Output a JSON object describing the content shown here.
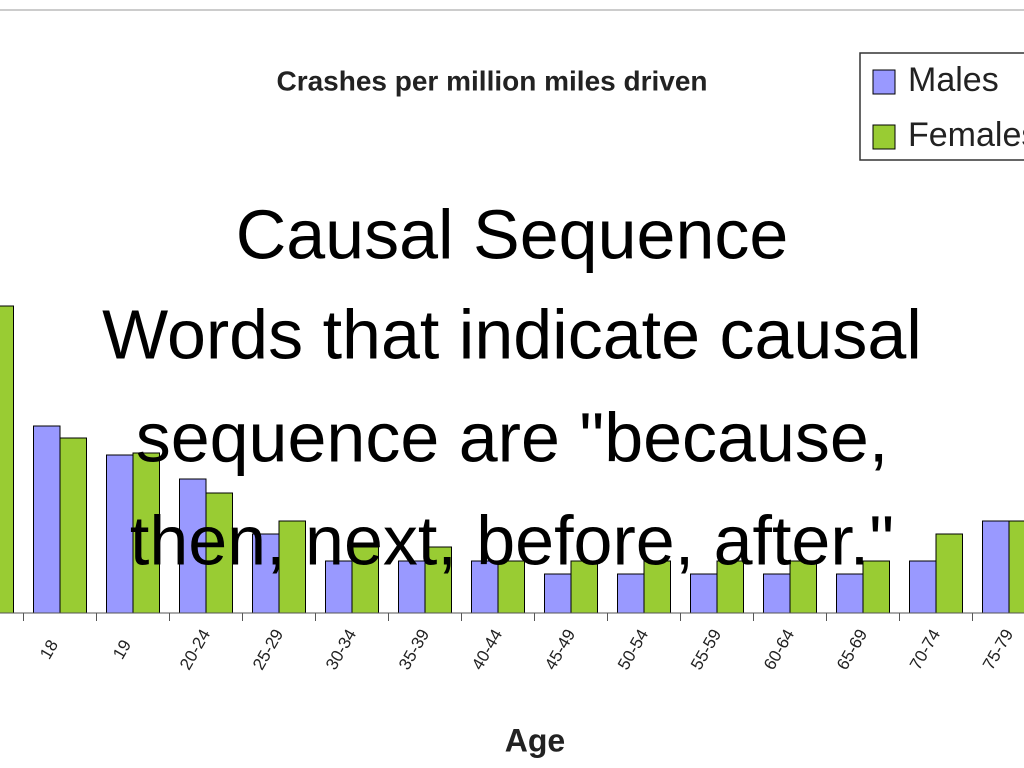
{
  "chart_data": {
    "type": "bar",
    "title": "Crashes per million miles driven",
    "x_label": "Age",
    "categories": [
      null,
      "18",
      "19",
      "20-24",
      "25-29",
      "30-34",
      "35-39",
      "40-44",
      "45-49",
      "50-54",
      "55-59",
      "60-64",
      "65-69",
      "70-74",
      "75-79"
    ],
    "series": [
      {
        "name": "Males",
        "color": "#9999ff",
        "values": [
          null,
          187,
          158,
          134,
          79,
          52,
          52,
          52,
          39,
          39,
          39,
          39,
          39,
          52,
          92
        ]
      },
      {
        "name": "Females",
        "color": "#99cc33",
        "values": [
          307,
          175,
          160,
          120,
          92,
          66,
          66,
          52,
          52,
          52,
          52,
          52,
          52,
          79,
          92
        ]
      }
    ]
  },
  "overlay": {
    "heading": "Causal Sequence",
    "lines": [
      "Words that indicate causal",
      "sequence are \"because,",
      "then, next, before, after.\""
    ]
  }
}
